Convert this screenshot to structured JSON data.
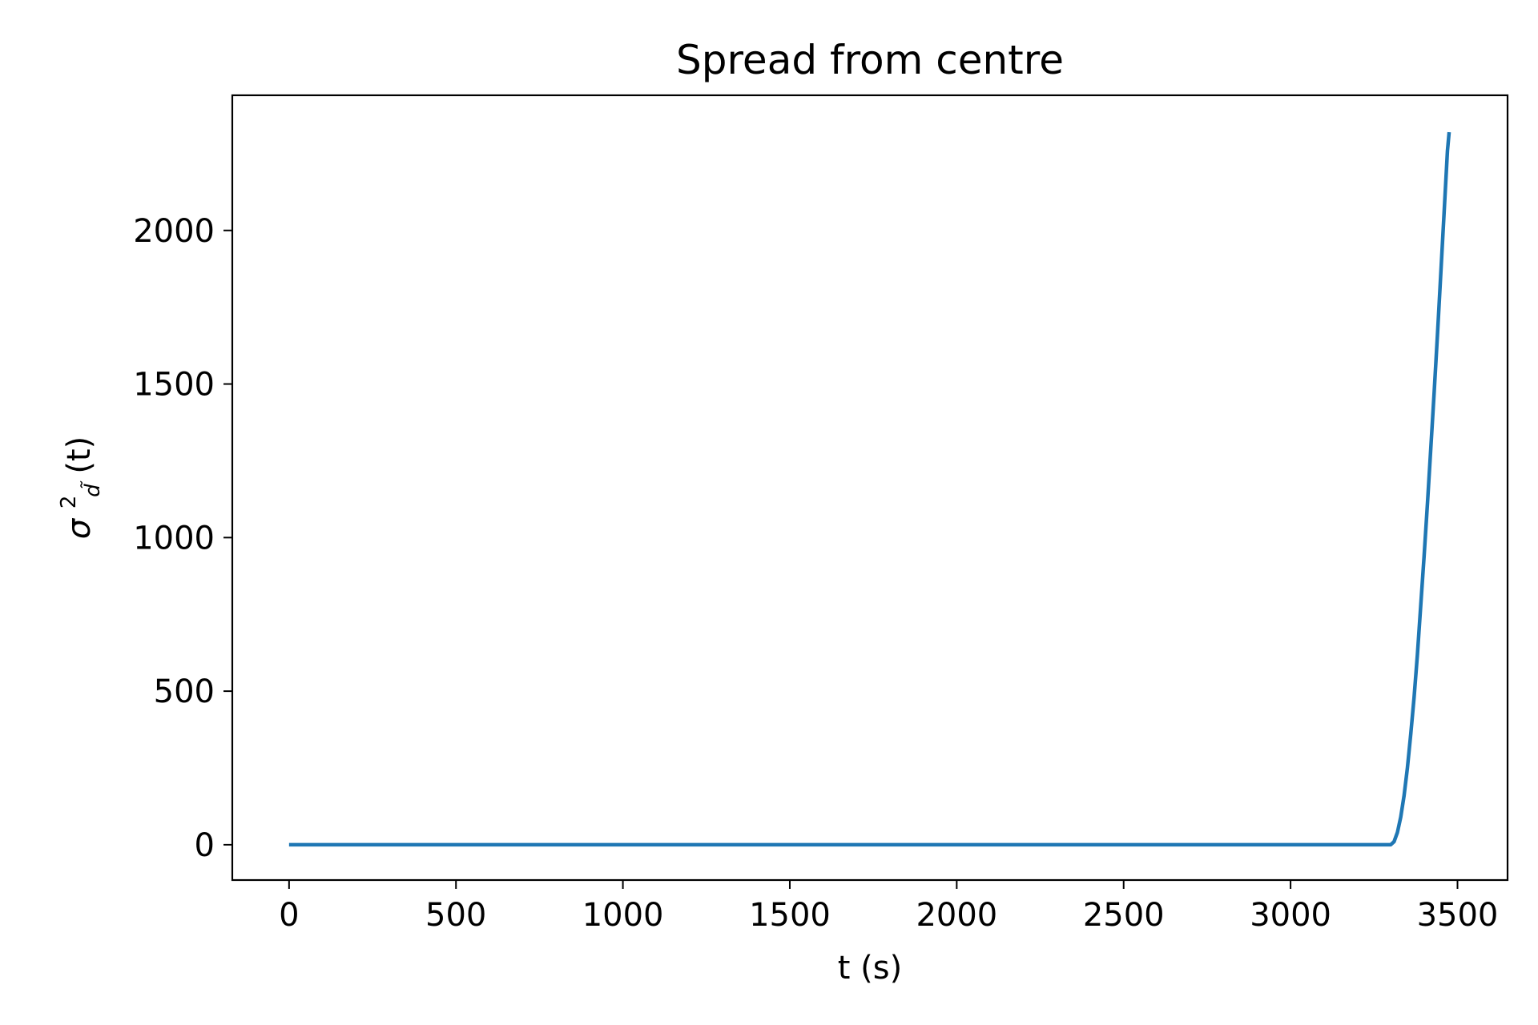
{
  "chart_data": {
    "type": "line",
    "title": "Spread from centre",
    "xlabel": "t (s)",
    "ylabel": {
      "base": "σ",
      "superscript": "2",
      "subscript": "d̃",
      "suffix": "(t)"
    },
    "xlim": [
      -170,
      3650
    ],
    "ylim": [
      -115,
      2440
    ],
    "x_ticks": [
      0,
      500,
      1000,
      1500,
      2000,
      2500,
      3000,
      3500
    ],
    "x_tick_labels": [
      "0",
      "500",
      "1000",
      "1500",
      "2000",
      "2500",
      "3000",
      "3500"
    ],
    "y_ticks": [
      0,
      500,
      1000,
      1500,
      2000
    ],
    "y_tick_labels": [
      "0",
      "500",
      "1000",
      "1500",
      "2000"
    ],
    "grid": false,
    "line_color": "#1f77b4",
    "series": [
      {
        "x": [
          0,
          500,
          1000,
          1500,
          2000,
          2500,
          3000,
          3300,
          3310,
          3320,
          3330,
          3340,
          3350,
          3360,
          3370,
          3380,
          3390,
          3400,
          3410,
          3420,
          3430,
          3440,
          3450,
          3460,
          3470,
          3475
        ],
        "y": [
          0,
          0,
          0,
          0,
          0,
          0,
          0,
          0,
          10,
          40,
          90,
          160,
          250,
          360,
          480,
          620,
          780,
          940,
          1110,
          1290,
          1470,
          1660,
          1860,
          2060,
          2260,
          2320
        ]
      }
    ]
  }
}
